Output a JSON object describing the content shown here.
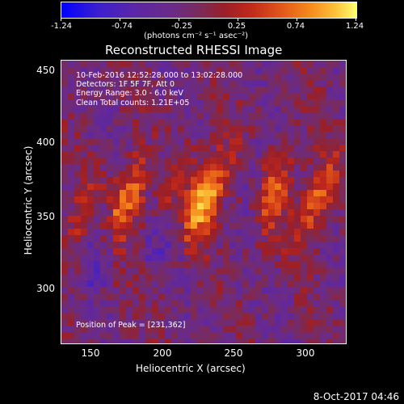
{
  "colorbar": {
    "ticks": [
      "-1.24",
      "-0.74",
      "-0.25",
      "0.25",
      "0.74",
      "1.24"
    ],
    "units": "(photons cm⁻² s⁻¹ asec⁻²)",
    "min": -1.24,
    "max": 1.24
  },
  "title": "Reconstructed RHESSI Image",
  "info": {
    "time": "10-Feb-2016 12:52:28.000 to 13:02:28.000",
    "detectors": "Detectors: 1F 5F 7F, Att 0",
    "energy": "Energy Range: 3.0 - 6.0 keV",
    "clean": "Clean     Total counts: 1.21E+05",
    "peak": "Position of Peak = [231,362]"
  },
  "axes": {
    "xlabel": "Heliocentric X (arcsec)",
    "ylabel": "Heliocentric Y (arcsec)",
    "xticks": [
      "150",
      "200",
      "250",
      "300"
    ],
    "yticks": [
      "450",
      "400",
      "350",
      "300"
    ],
    "xrange": [
      133,
      325
    ],
    "yrange": [
      262,
      455
    ]
  },
  "datestamp": "8-Oct-2017 04:46",
  "image": {
    "peak": [
      231,
      362
    ],
    "source_lobes": [
      {
        "x": 178,
        "y": 362,
        "amp": 0.95
      },
      {
        "x": 231,
        "y": 362,
        "amp": 1.24
      },
      {
        "x": 207,
        "y": 370,
        "amp": 0.55
      },
      {
        "x": 277,
        "y": 365,
        "amp": 0.7
      },
      {
        "x": 305,
        "y": 360,
        "amp": 0.85
      },
      {
        "x": 145,
        "y": 345,
        "amp": 0.45
      }
    ]
  }
}
